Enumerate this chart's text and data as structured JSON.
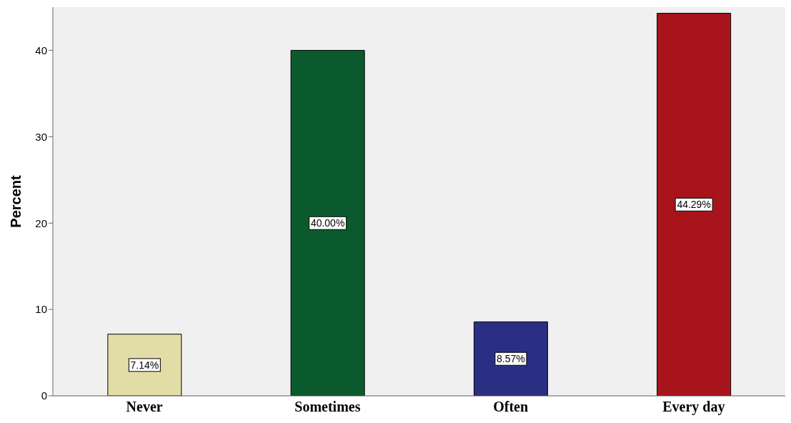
{
  "chart_data": {
    "type": "bar",
    "ylabel": "Percent",
    "categories": [
      "Never",
      "Sometimes",
      "Often",
      "Every day"
    ],
    "values": [
      7.14,
      40.0,
      8.57,
      44.29
    ],
    "colors": [
      "#e2dda6",
      "#0b5a2e",
      "#2b2f84",
      "#a8141c"
    ],
    "value_labels": [
      "7.14%",
      "40.00%",
      "8.57%",
      "44.29%"
    ],
    "ylim": [
      0,
      45
    ],
    "yticks": [
      0,
      10,
      20,
      30,
      40
    ]
  }
}
